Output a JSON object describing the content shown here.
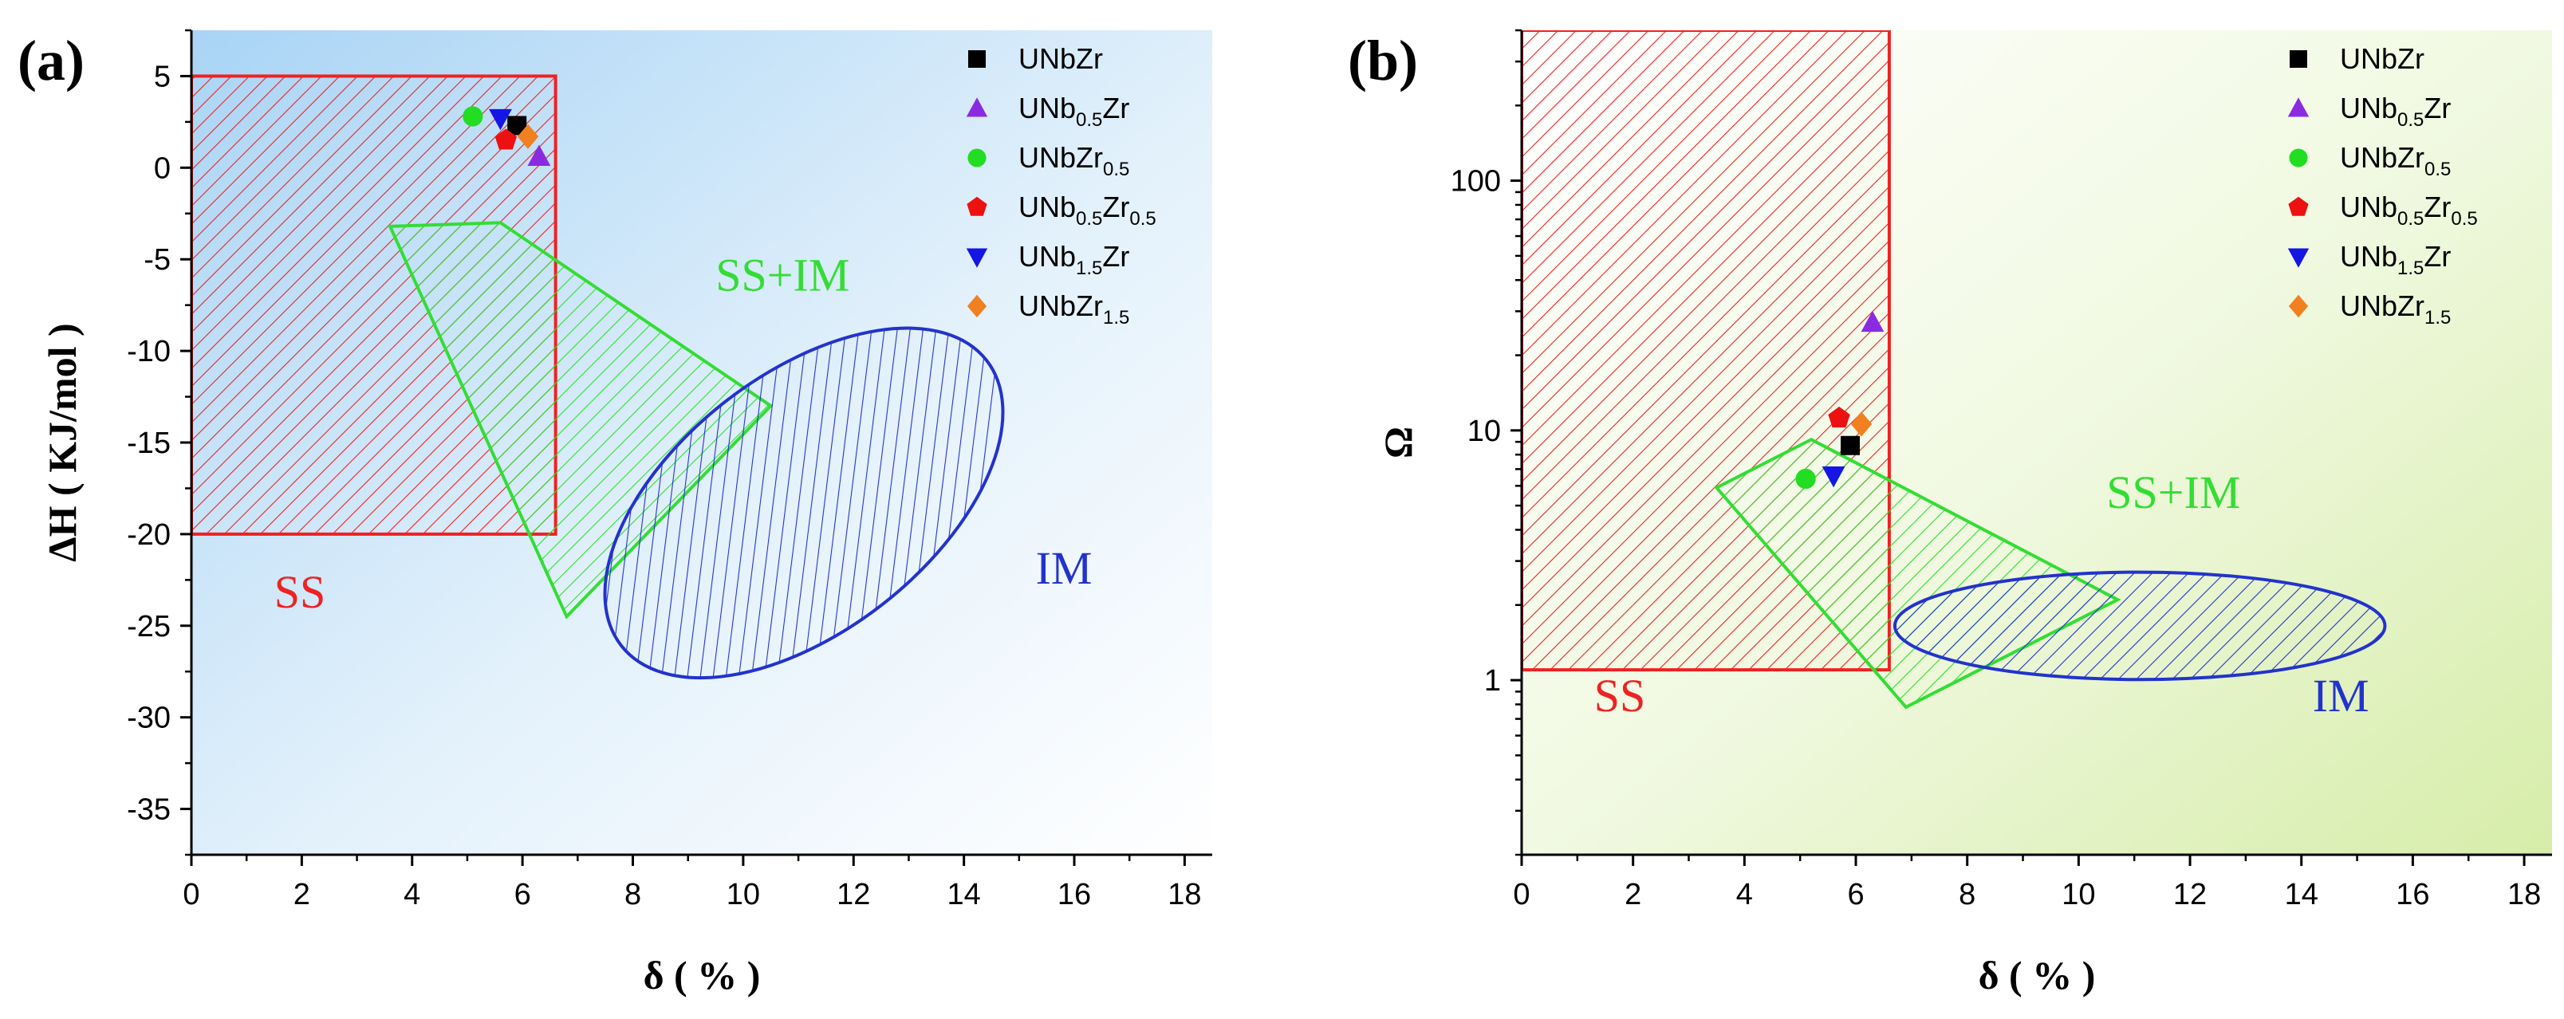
{
  "chart_data": [
    {
      "panel_label": "(a)",
      "type": "scatter",
      "xlabel": "δ ( % )",
      "ylabel": "ΔH ( KJ/mol )",
      "xlim": [
        0,
        18.5
      ],
      "ylim": [
        -37.5,
        7.5
      ],
      "xticks": [
        0,
        2,
        4,
        6,
        8,
        10,
        12,
        14,
        16,
        18
      ],
      "yticks": [
        5,
        0,
        -5,
        -10,
        -15,
        -20,
        -25,
        -30,
        -35
      ],
      "y_scale": "linear",
      "background": "gradient-blue",
      "series": [
        {
          "name": "UNbZr",
          "sub": "",
          "name2": "",
          "sub2": "",
          "marker": "square",
          "color": "#000000",
          "x": 5.9,
          "y": 2.3
        },
        {
          "name": "UNb",
          "sub": "0.5",
          "name2": "Zr",
          "sub2": "",
          "marker": "triangle-up",
          "color": "#8a2be2",
          "x": 6.3,
          "y": 0.6
        },
        {
          "name": "UNbZr",
          "sub": "0.5",
          "name2": "",
          "sub2": "",
          "marker": "circle",
          "color": "#22dd22",
          "x": 5.1,
          "y": 2.8
        },
        {
          "name": "UNb",
          "sub": "0.5",
          "name2": "Zr",
          "sub2": "0.5",
          "marker": "pentagon",
          "color": "#ee1111",
          "x": 5.7,
          "y": 1.5
        },
        {
          "name": "UNb",
          "sub": "1.5",
          "name2": "Zr",
          "sub2": "",
          "marker": "triangle-down",
          "color": "#1515e6",
          "x": 5.6,
          "y": 2.7
        },
        {
          "name": "UNbZr",
          "sub": "1.5",
          "name2": "",
          "sub2": "",
          "marker": "diamond",
          "color": "#f08020",
          "x": 6.1,
          "y": 1.7
        }
      ],
      "regions": [
        {
          "label": "SS",
          "shape": "rect",
          "color": "#ee2222",
          "x0": 0,
          "x1": 6.6,
          "y0": -20,
          "y1": 5,
          "label_at": [
            1.5,
            -24
          ]
        },
        {
          "label": "SS+IM",
          "shape": "polygon",
          "color": "#33dd33",
          "points": [
            [
              3.6,
              -3.2
            ],
            [
              5.6,
              -3.0
            ],
            [
              10.5,
              -13
            ],
            [
              6.8,
              -24.5
            ]
          ],
          "label_at": [
            9.5,
            -6.7
          ]
        },
        {
          "label": "IM",
          "shape": "ellipse",
          "color": "#2233cc",
          "cx": 11.1,
          "cy": -18.3,
          "rx": 4.2,
          "ry": 1.75,
          "angle_deg": -38,
          "label_at": [
            15.3,
            -22.7
          ]
        }
      ]
    },
    {
      "panel_label": "(b)",
      "type": "scatter",
      "xlabel": "δ ( % )",
      "ylabel": "Ω",
      "xlim": [
        0,
        18.5
      ],
      "ylim": [
        0.2,
        400
      ],
      "xticks": [
        0,
        2,
        4,
        6,
        8,
        10,
        12,
        14,
        16,
        18
      ],
      "yticks": [
        1,
        10,
        100
      ],
      "y_scale": "log",
      "background": "gradient-green",
      "series": [
        {
          "name": "UNbZr",
          "sub": "",
          "name2": "",
          "sub2": "",
          "marker": "square",
          "color": "#000000",
          "x": 5.9,
          "y": 8.7
        },
        {
          "name": "UNb",
          "sub": "0.5",
          "name2": "Zr",
          "sub2": "",
          "marker": "triangle-up",
          "color": "#8a2be2",
          "x": 6.3,
          "y": 27
        },
        {
          "name": "UNbZr",
          "sub": "0.5",
          "name2": "",
          "sub2": "",
          "marker": "circle",
          "color": "#22dd22",
          "x": 5.1,
          "y": 6.4
        },
        {
          "name": "UNb",
          "sub": "0.5",
          "name2": "Zr",
          "sub2": "0.5",
          "marker": "pentagon",
          "color": "#ee1111",
          "x": 5.7,
          "y": 11.2
        },
        {
          "name": "UNb",
          "sub": "1.5",
          "name2": "Zr",
          "sub2": "",
          "marker": "triangle-down",
          "color": "#1515e6",
          "x": 5.6,
          "y": 6.6
        },
        {
          "name": "UNbZr",
          "sub": "1.5",
          "name2": "",
          "sub2": "",
          "marker": "diamond",
          "color": "#f08020",
          "x": 6.1,
          "y": 10.6
        }
      ],
      "regions": [
        {
          "label": "SS",
          "shape": "rect",
          "color": "#ee2222",
          "x0": 0,
          "x1": 6.6,
          "y0": 1.1,
          "y1": 400,
          "label_at": [
            1.3,
            0.75
          ]
        },
        {
          "label": "SS+IM",
          "shape": "polygon",
          "color": "#33dd33",
          "points": [
            [
              3.5,
              5.9
            ],
            [
              5.2,
              9.2
            ],
            [
              10.7,
              2.1
            ],
            [
              6.9,
              0.78
            ]
          ],
          "label_at": [
            10.5,
            4.9
          ]
        },
        {
          "label": "IM",
          "shape": "ellipse",
          "color": "#2233cc",
          "cx": 11.1,
          "cy": 1.65,
          "rx": 4.4,
          "ry_log": 0.215,
          "angle_deg": 0,
          "label_at": [
            14.2,
            0.75
          ]
        }
      ]
    }
  ]
}
